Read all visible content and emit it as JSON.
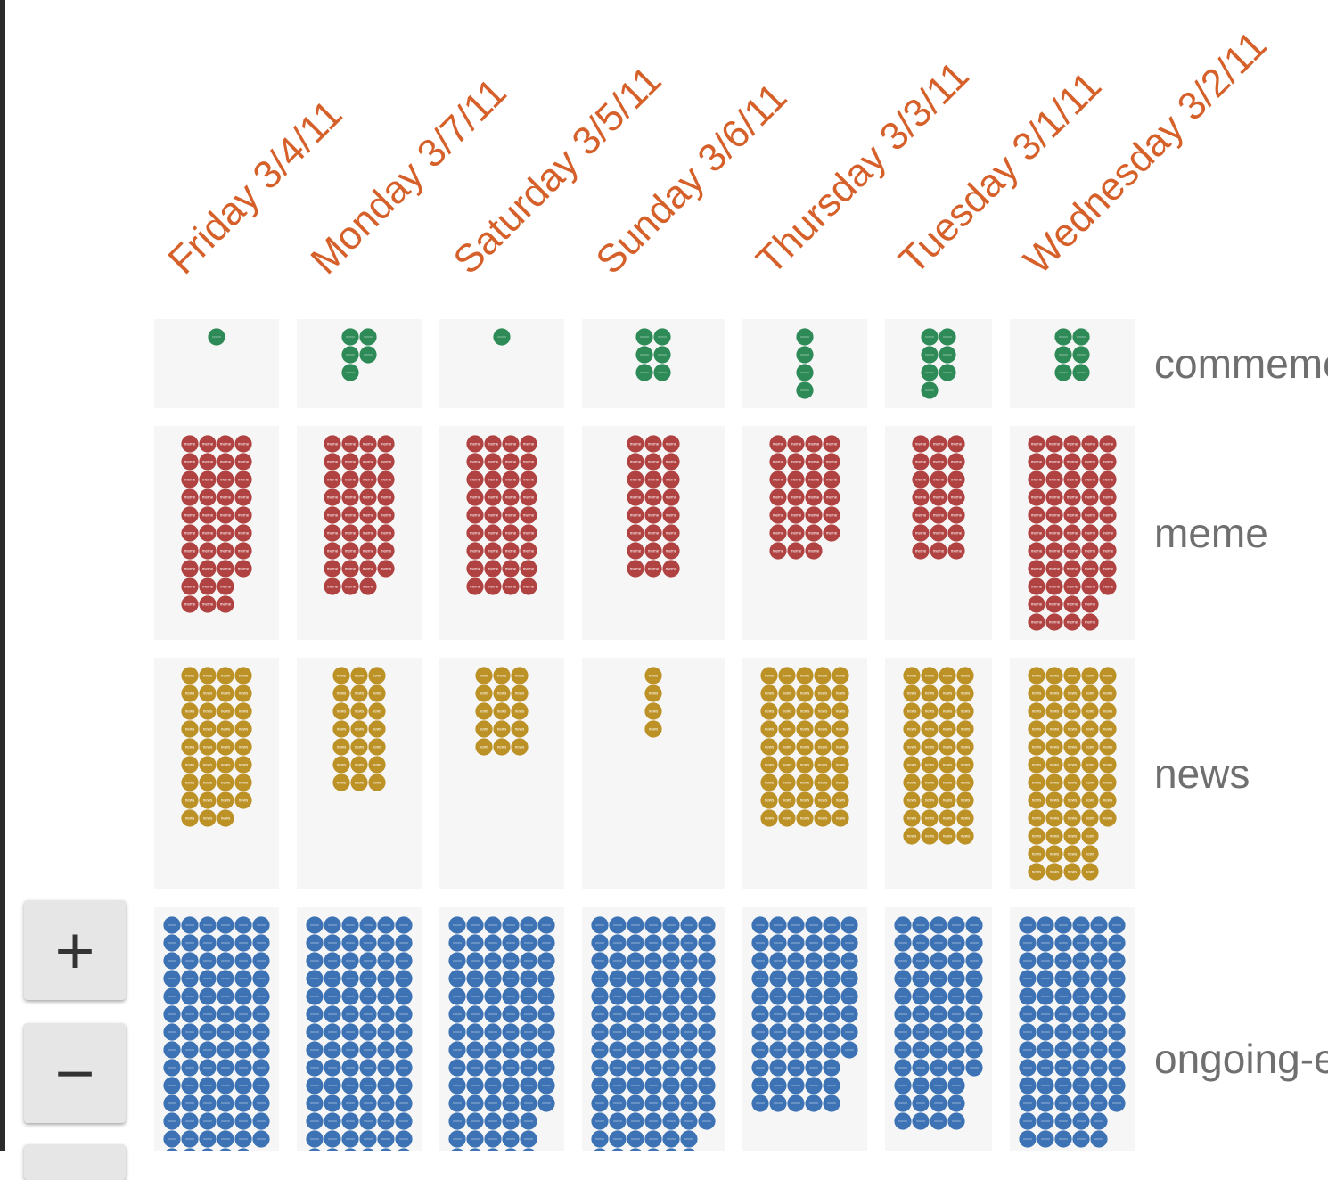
{
  "zoom_controls": {
    "zoom_in_label": "+",
    "zoom_out_label": "−",
    "extra_label": ""
  },
  "chart_data": {
    "type": "unit-dot-matrix",
    "title": "",
    "xlabel": "",
    "ylabel": "",
    "columns": [
      "Friday 3/4/11",
      "Monday 3/7/11",
      "Saturday 3/5/11",
      "Sunday 3/6/11",
      "Thursday 3/3/11",
      "Tuesday 3/1/11",
      "Wednesday 3/2/11"
    ],
    "rows": [
      {
        "name": "commemorative",
        "color": "#2e8b57",
        "dot_text": "",
        "values": [
          1,
          5,
          1,
          6,
          4,
          7,
          6
        ]
      },
      {
        "name": "meme",
        "color": "#b04342",
        "dot_text": "meme",
        "values": [
          38,
          35,
          36,
          24,
          27,
          21,
          53
        ]
      },
      {
        "name": "news",
        "color": "#bc9227",
        "dot_text": "news",
        "values": [
          35,
          21,
          15,
          4,
          45,
          40,
          57
        ]
      },
      {
        "name": "ongoing-event",
        "color": "#3d73b4",
        "dot_text": "",
        "values": [
          83,
          84,
          81,
          108,
          63,
          57,
          76
        ]
      }
    ],
    "column_label_color": "#d6602a",
    "row_label_color": "#6f6f6f",
    "grid": false,
    "legend": "none"
  }
}
